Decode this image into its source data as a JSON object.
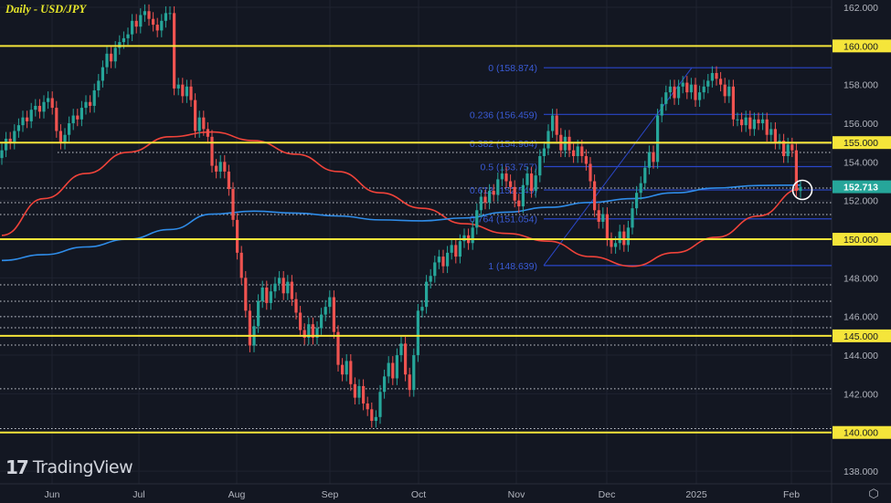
{
  "header": {
    "title": "Daily - USD/JPY"
  },
  "branding": {
    "logo_text": "TradingView",
    "logo_mark": "17"
  },
  "colors": {
    "background": "#131722",
    "up": "#26a69a",
    "down": "#ef5350",
    "support_resistance": "#f5e53a",
    "fib": "#2a47c9",
    "ma_red": "#f0433a",
    "ma_blue": "#2f8ce8",
    "last_price_bg": "#26a69a"
  },
  "icons": {
    "settings": "gear-hexagon-icon"
  },
  "chart_data": {
    "type": "candlestick",
    "title": "Daily - USD/JPY",
    "ylim": [
      137.5,
      162.4
    ],
    "y_ticks": [
      "162.000",
      "158.000",
      "156.000",
      "154.000",
      "152.000",
      "148.000",
      "146.000",
      "144.000",
      "142.000",
      "138.000"
    ],
    "y_tick_values": [
      162,
      158,
      156,
      154,
      152,
      148,
      146,
      144,
      142,
      138
    ],
    "x_ticks": [
      "Jun",
      "Jul",
      "Aug",
      "Sep",
      "Oct",
      "Nov",
      "Dec",
      "2025",
      "Feb"
    ],
    "grid": true,
    "last_price": {
      "value": 152.713,
      "label": "152.713"
    },
    "closes": [
      154.6,
      155.2,
      155.0,
      155.6,
      155.9,
      156.3,
      156.1,
      156.7,
      156.9,
      156.6,
      157.1,
      157.3,
      156.8,
      155.6,
      155.0,
      155.4,
      156.0,
      156.4,
      156.2,
      156.8,
      157.1,
      156.9,
      157.7,
      158.2,
      158.9,
      159.6,
      159.2,
      159.9,
      160.2,
      160.4,
      160.6,
      161.3,
      161.0,
      161.6,
      161.8,
      161.4,
      161.1,
      160.8,
      161.3,
      161.7,
      161.7,
      157.8,
      158.0,
      157.4,
      157.9,
      157.2,
      155.6,
      156.3,
      155.7,
      155.3,
      153.8,
      153.5,
      154.0,
      153.5,
      152.6,
      151.0,
      149.3,
      148.0,
      146.3,
      144.5,
      145.5,
      146.8,
      147.5,
      146.7,
      147.3,
      147.7,
      148.0,
      147.2,
      147.8,
      146.9,
      146.2,
      145.3,
      144.9,
      145.6,
      144.9,
      145.4,
      146.1,
      146.5,
      147.0,
      145.2,
      143.5,
      143.0,
      143.7,
      142.5,
      141.8,
      142.4,
      141.5,
      141.2,
      140.6,
      140.8,
      142.1,
      142.9,
      143.6,
      142.8,
      144.0,
      144.6,
      143.0,
      142.2,
      144.0,
      146.3,
      146.5,
      147.8,
      148.1,
      148.8,
      149.1,
      148.6,
      149.3,
      149.7,
      149.1,
      149.9,
      150.2,
      149.8,
      150.6,
      151.5,
      152.2,
      151.9,
      152.5,
      152.3,
      153.1,
      153.4,
      153.0,
      152.7,
      152.0,
      151.7,
      152.8,
      153.4,
      152.5,
      153.3,
      154.3,
      154.7,
      155.6,
      156.4,
      155.4,
      154.6,
      155.3,
      154.6,
      154.3,
      154.8,
      154.3,
      153.9,
      153.0,
      151.5,
      150.9,
      151.3,
      150.0,
      149.6,
      149.8,
      150.4,
      149.7,
      150.6,
      151.6,
      152.4,
      152.9,
      153.7,
      154.5,
      154.0,
      156.4,
      157.0,
      157.6,
      157.9,
      157.3,
      157.9,
      158.1,
      157.6,
      158.0,
      157.2,
      157.6,
      157.9,
      158.2,
      158.6,
      158.3,
      158.0,
      157.4,
      157.9,
      156.2,
      156.2,
      155.9,
      156.3,
      155.7,
      156.2,
      156.0,
      156.2,
      155.4,
      155.7,
      155.0,
      155.1,
      154.3,
      154.9,
      154.6,
      152.5,
      152.713
    ],
    "ma_red_every_10_bars": [
      150.2,
      152.1,
      153.4,
      154.5,
      155.3,
      155.55,
      155.1,
      154.4,
      153.5,
      152.4,
      151.6,
      150.8,
      150.3,
      149.9,
      149.1,
      148.6,
      149.3,
      150.1,
      151.2,
      152.6
    ],
    "ma_blue_every_10_bars": [
      148.9,
      149.2,
      149.6,
      150.0,
      150.5,
      151.3,
      151.45,
      151.35,
      151.2,
      151.0,
      150.95,
      151.1,
      151.4,
      151.65,
      151.9,
      152.1,
      152.4,
      152.65,
      152.78,
      152.8
    ],
    "horizontal_levels": [
      {
        "value": 160,
        "label": "160.000"
      },
      {
        "value": 155,
        "label": "155.000"
      },
      {
        "value": 150,
        "label": "150.000"
      },
      {
        "value": 145,
        "label": "145.000"
      },
      {
        "value": 140,
        "label": "140.000"
      }
    ],
    "dotted_levels": [
      154.49,
      152.65,
      151.89,
      151.28,
      147.64,
      146.79,
      145.99,
      145.42,
      144.52,
      142.26,
      140.2
    ],
    "fibonacci": {
      "high": 158.874,
      "low": 148.639,
      "levels": [
        {
          "ratio": "0",
          "price": "158.874",
          "label": "0 (158.874)"
        },
        {
          "ratio": "0.236",
          "price": "156.459",
          "label": "0.236 (156.459)"
        },
        {
          "ratio": "0.382",
          "price": "154.964",
          "label": "0.382 (154.964)"
        },
        {
          "ratio": "0.5",
          "price": "153.757",
          "label": "0.5 (153.757)"
        },
        {
          "ratio": "0.618",
          "price": "152.549",
          "label": "0.618 (152.549)"
        },
        {
          "ratio": "0.764",
          "price": "151.054",
          "label": "0.764 (151.054)"
        },
        {
          "ratio": "1",
          "price": "148.639",
          "label": "1 (148.639)"
        }
      ]
    }
  }
}
